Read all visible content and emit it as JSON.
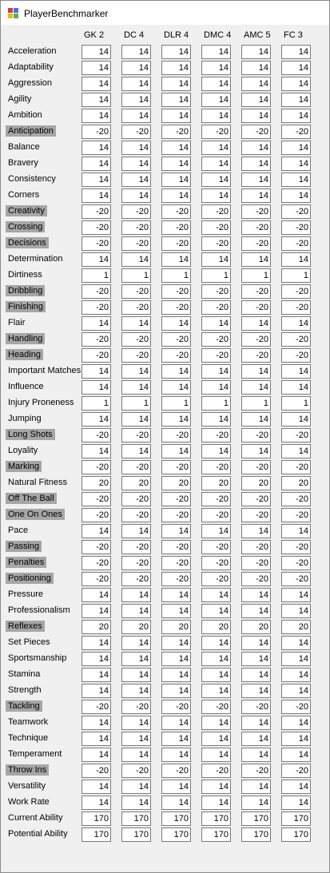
{
  "window": {
    "title": "PlayerBenchmarker",
    "icon": "app-window-icon"
  },
  "columns": [
    "GK 2",
    "DC 4",
    "DLR 4",
    "DMC 4",
    "AMC 5",
    "FC 3"
  ],
  "colors": {
    "highlight_label_bg": "#a6a6a6",
    "window_bg": "#f0f0f0"
  },
  "rows": [
    {
      "label": "Acceleration",
      "highlight": false,
      "values": [
        "14",
        "14",
        "14",
        "14",
        "14",
        "14"
      ]
    },
    {
      "label": "Adaptability",
      "highlight": false,
      "values": [
        "14",
        "14",
        "14",
        "14",
        "14",
        "14"
      ]
    },
    {
      "label": "Aggression",
      "highlight": false,
      "values": [
        "14",
        "14",
        "14",
        "14",
        "14",
        "14"
      ]
    },
    {
      "label": "Agility",
      "highlight": false,
      "values": [
        "14",
        "14",
        "14",
        "14",
        "14",
        "14"
      ]
    },
    {
      "label": "Ambition",
      "highlight": false,
      "values": [
        "14",
        "14",
        "14",
        "14",
        "14",
        "14"
      ]
    },
    {
      "label": "Anticipation",
      "highlight": true,
      "values": [
        "-20",
        "-20",
        "-20",
        "-20",
        "-20",
        "-20"
      ]
    },
    {
      "label": "Balance",
      "highlight": false,
      "values": [
        "14",
        "14",
        "14",
        "14",
        "14",
        "14"
      ]
    },
    {
      "label": "Bravery",
      "highlight": false,
      "values": [
        "14",
        "14",
        "14",
        "14",
        "14",
        "14"
      ]
    },
    {
      "label": "Consistency",
      "highlight": false,
      "values": [
        "14",
        "14",
        "14",
        "14",
        "14",
        "14"
      ]
    },
    {
      "label": "Corners",
      "highlight": false,
      "values": [
        "14",
        "14",
        "14",
        "14",
        "14",
        "14"
      ]
    },
    {
      "label": "Creativity",
      "highlight": true,
      "values": [
        "-20",
        "-20",
        "-20",
        "-20",
        "-20",
        "-20"
      ]
    },
    {
      "label": "Crossing",
      "highlight": true,
      "values": [
        "-20",
        "-20",
        "-20",
        "-20",
        "-20",
        "-20"
      ]
    },
    {
      "label": "Decisions",
      "highlight": true,
      "values": [
        "-20",
        "-20",
        "-20",
        "-20",
        "-20",
        "-20"
      ]
    },
    {
      "label": "Determination",
      "highlight": false,
      "values": [
        "14",
        "14",
        "14",
        "14",
        "14",
        "14"
      ]
    },
    {
      "label": "Dirtiness",
      "highlight": false,
      "values": [
        "1",
        "1",
        "1",
        "1",
        "1",
        "1"
      ]
    },
    {
      "label": "Dribbling",
      "highlight": true,
      "values": [
        "-20",
        "-20",
        "-20",
        "-20",
        "-20",
        "-20"
      ]
    },
    {
      "label": "Finishing",
      "highlight": true,
      "values": [
        "-20",
        "-20",
        "-20",
        "-20",
        "-20",
        "-20"
      ]
    },
    {
      "label": "Flair",
      "highlight": false,
      "values": [
        "14",
        "14",
        "14",
        "14",
        "14",
        "14"
      ]
    },
    {
      "label": "Handling",
      "highlight": true,
      "values": [
        "-20",
        "-20",
        "-20",
        "-20",
        "-20",
        "-20"
      ]
    },
    {
      "label": "Heading",
      "highlight": true,
      "values": [
        "-20",
        "-20",
        "-20",
        "-20",
        "-20",
        "-20"
      ]
    },
    {
      "label": "Important Matches",
      "highlight": false,
      "values": [
        "14",
        "14",
        "14",
        "14",
        "14",
        "14"
      ]
    },
    {
      "label": "Influence",
      "highlight": false,
      "values": [
        "14",
        "14",
        "14",
        "14",
        "14",
        "14"
      ]
    },
    {
      "label": "Injury Proneness",
      "highlight": false,
      "values": [
        "1",
        "1",
        "1",
        "1",
        "1",
        "1"
      ]
    },
    {
      "label": "Jumping",
      "highlight": false,
      "values": [
        "14",
        "14",
        "14",
        "14",
        "14",
        "14"
      ]
    },
    {
      "label": "Long Shots",
      "highlight": true,
      "values": [
        "-20",
        "-20",
        "-20",
        "-20",
        "-20",
        "-20"
      ]
    },
    {
      "label": "Loyality",
      "highlight": false,
      "values": [
        "14",
        "14",
        "14",
        "14",
        "14",
        "14"
      ]
    },
    {
      "label": "Marking",
      "highlight": true,
      "values": [
        "-20",
        "-20",
        "-20",
        "-20",
        "-20",
        "-20"
      ]
    },
    {
      "label": "Natural Fitness",
      "highlight": false,
      "values": [
        "20",
        "20",
        "20",
        "20",
        "20",
        "20"
      ]
    },
    {
      "label": "Off The Ball",
      "highlight": true,
      "values": [
        "-20",
        "-20",
        "-20",
        "-20",
        "-20",
        "-20"
      ]
    },
    {
      "label": "One On Ones",
      "highlight": true,
      "values": [
        "-20",
        "-20",
        "-20",
        "-20",
        "-20",
        "-20"
      ]
    },
    {
      "label": "Pace",
      "highlight": false,
      "values": [
        "14",
        "14",
        "14",
        "14",
        "14",
        "14"
      ]
    },
    {
      "label": "Passing",
      "highlight": true,
      "values": [
        "-20",
        "-20",
        "-20",
        "-20",
        "-20",
        "-20"
      ]
    },
    {
      "label": "Penalties",
      "highlight": true,
      "values": [
        "-20",
        "-20",
        "-20",
        "-20",
        "-20",
        "-20"
      ]
    },
    {
      "label": "Positioning",
      "highlight": true,
      "values": [
        "-20",
        "-20",
        "-20",
        "-20",
        "-20",
        "-20"
      ]
    },
    {
      "label": "Pressure",
      "highlight": false,
      "values": [
        "14",
        "14",
        "14",
        "14",
        "14",
        "14"
      ]
    },
    {
      "label": "Professionalism",
      "highlight": false,
      "values": [
        "14",
        "14",
        "14",
        "14",
        "14",
        "14"
      ]
    },
    {
      "label": "Reflexes",
      "highlight": true,
      "values": [
        "20",
        "20",
        "20",
        "20",
        "20",
        "20"
      ]
    },
    {
      "label": "Set Pieces",
      "highlight": false,
      "values": [
        "14",
        "14",
        "14",
        "14",
        "14",
        "14"
      ]
    },
    {
      "label": "Sportsmanship",
      "highlight": false,
      "values": [
        "14",
        "14",
        "14",
        "14",
        "14",
        "14"
      ]
    },
    {
      "label": "Stamina",
      "highlight": false,
      "values": [
        "14",
        "14",
        "14",
        "14",
        "14",
        "14"
      ]
    },
    {
      "label": "Strength",
      "highlight": false,
      "values": [
        "14",
        "14",
        "14",
        "14",
        "14",
        "14"
      ]
    },
    {
      "label": "Tackling",
      "highlight": true,
      "values": [
        "-20",
        "-20",
        "-20",
        "-20",
        "-20",
        "-20"
      ]
    },
    {
      "label": "Teamwork",
      "highlight": false,
      "values": [
        "14",
        "14",
        "14",
        "14",
        "14",
        "14"
      ]
    },
    {
      "label": "Technique",
      "highlight": false,
      "values": [
        "14",
        "14",
        "14",
        "14",
        "14",
        "14"
      ]
    },
    {
      "label": "Temperament",
      "highlight": false,
      "values": [
        "14",
        "14",
        "14",
        "14",
        "14",
        "14"
      ]
    },
    {
      "label": "Throw Ins",
      "highlight": true,
      "values": [
        "-20",
        "-20",
        "-20",
        "-20",
        "-20",
        "-20"
      ]
    },
    {
      "label": "Versatility",
      "highlight": false,
      "values": [
        "14",
        "14",
        "14",
        "14",
        "14",
        "14"
      ]
    },
    {
      "label": "Work Rate",
      "highlight": false,
      "values": [
        "14",
        "14",
        "14",
        "14",
        "14",
        "14"
      ]
    },
    {
      "label": "Current Ability",
      "highlight": false,
      "values": [
        "170",
        "170",
        "170",
        "170",
        "170",
        "170"
      ]
    },
    {
      "label": "Potential Ability",
      "highlight": false,
      "values": [
        "170",
        "170",
        "170",
        "170",
        "170",
        "170"
      ]
    }
  ]
}
